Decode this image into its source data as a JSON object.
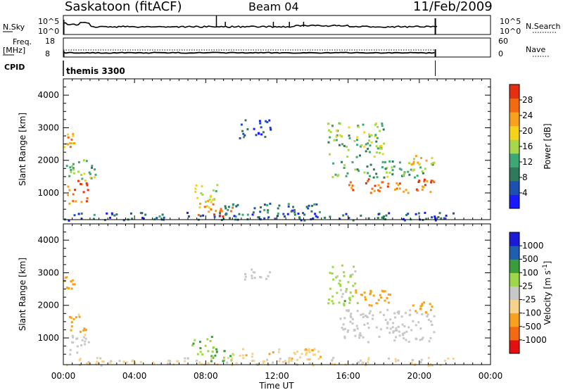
{
  "header": {
    "station": "Saskatoon (fitACF)",
    "beam": "Beam 04",
    "date": "11/Feb/2009"
  },
  "noise_panel": {
    "left_label": "N.Sky",
    "left_ticks": [
      "10^5",
      "10^0"
    ],
    "right_label": "N.Search",
    "right_ticks": [
      "10^5",
      "10^0"
    ]
  },
  "freq_panel": {
    "left_label_1": "Freq.",
    "left_label_2": "[MHz]",
    "left_ticks": [
      "18",
      "8"
    ],
    "right_label": "Nave",
    "right_ticks": [
      "60",
      "0"
    ]
  },
  "cpid": {
    "label": "CPID",
    "value": "themis 3300"
  },
  "colors": {
    "power": [
      "#1a1aff",
      "#1f4fb0",
      "#2e7a5a",
      "#3ea874",
      "#a8d84a",
      "#f6d21a",
      "#f7a21a",
      "#f46a10",
      "#e43010"
    ],
    "velocity": [
      "#e41010",
      "#f46a10",
      "#f7a21a",
      "#f6d28a",
      "#c8c8c8",
      "#9ed84a",
      "#3a9c3a",
      "#1f5fb0",
      "#1a1ad8"
    ]
  },
  "chart_data": [
    {
      "type": "heatmap",
      "name": "power",
      "ylabel": "Slant Range [km]",
      "xlabel": "Time UT",
      "x_ticks": [
        "00:00",
        "04:00",
        "08:00",
        "12:00",
        "16:00",
        "20:00",
        "00:00"
      ],
      "y_ticks": [
        "1000",
        "2000",
        "3000",
        "4000"
      ],
      "xlim_hours": [
        0,
        24
      ],
      "ylim_km": [
        180,
        4500
      ],
      "colorbar_label": "Power [dB]",
      "colorbar_ticks": [
        "4",
        "8",
        "12",
        "16",
        "20",
        "24",
        "28"
      ],
      "colorbar_range": [
        0,
        30
      ],
      "regions": [
        {
          "t": [
            0.0,
            0.6
          ],
          "r": [
            2400,
            2900
          ],
          "level": 20
        },
        {
          "t": [
            0.1,
            0.9
          ],
          "r": [
            1500,
            2000
          ],
          "level": 12
        },
        {
          "t": [
            0.2,
            1.4
          ],
          "r": [
            700,
            1400
          ],
          "level": 26
        },
        {
          "t": [
            0.9,
            1.8
          ],
          "r": [
            1400,
            2200
          ],
          "level": 14
        },
        {
          "t": [
            0.0,
            22.0
          ],
          "r": [
            180,
            420
          ],
          "level": 6
        },
        {
          "t": [
            7.2,
            8.6
          ],
          "r": [
            600,
            1300
          ],
          "level": 18
        },
        {
          "t": [
            7.5,
            9.5
          ],
          "r": [
            300,
            700
          ],
          "level": 24
        },
        {
          "t": [
            9.8,
            11.6
          ],
          "r": [
            2700,
            3300
          ],
          "level": 6
        },
        {
          "t": [
            9.0,
            14.5
          ],
          "r": [
            350,
            700
          ],
          "level": 8
        },
        {
          "t": [
            14.8,
            18.0
          ],
          "r": [
            2100,
            3200
          ],
          "level": 14
        },
        {
          "t": [
            15.0,
            20.8
          ],
          "r": [
            1500,
            2000
          ],
          "level": 12
        },
        {
          "t": [
            16.0,
            20.8
          ],
          "r": [
            1000,
            1450
          ],
          "level": 25
        },
        {
          "t": [
            19.5,
            20.8
          ],
          "r": [
            1900,
            2200
          ],
          "level": 18
        }
      ]
    },
    {
      "type": "heatmap",
      "name": "velocity",
      "ylabel": "Slant Range [km]",
      "xlabel": "Time UT",
      "x_ticks": [
        "00:00",
        "04:00",
        "08:00",
        "12:00",
        "16:00",
        "20:00",
        "00:00"
      ],
      "y_ticks": [
        "1000",
        "2000",
        "3000",
        "4000"
      ],
      "xlim_hours": [
        0,
        24
      ],
      "ylim_km": [
        180,
        4500
      ],
      "colorbar_label": "Velocity [m s^-1]",
      "colorbar_ticks": [
        "-1000",
        "-500",
        "-100",
        "-25",
        "25",
        "100",
        "500",
        "1000"
      ],
      "regions": [
        {
          "t": [
            0.0,
            0.6
          ],
          "r": [
            2400,
            2900
          ],
          "value": -300
        },
        {
          "t": [
            0.2,
            1.3
          ],
          "r": [
            1100,
            1800
          ],
          "value": -150
        },
        {
          "t": [
            0.1,
            1.4
          ],
          "r": [
            500,
            1100
          ],
          "value": 0
        },
        {
          "t": [
            7.2,
            8.6
          ],
          "r": [
            500,
            1100
          ],
          "value": 80
        },
        {
          "t": [
            8.0,
            9.5
          ],
          "r": [
            250,
            700
          ],
          "value": 90
        },
        {
          "t": [
            9.5,
            14.5
          ],
          "r": [
            350,
            700
          ],
          "value": -90
        },
        {
          "t": [
            10.0,
            11.6
          ],
          "r": [
            2800,
            3200
          ],
          "value": 0
        },
        {
          "t": [
            14.8,
            16.5
          ],
          "r": [
            2000,
            3300
          ],
          "value": 60
        },
        {
          "t": [
            16.0,
            18.5
          ],
          "r": [
            2000,
            2500
          ],
          "value": -200
        },
        {
          "t": [
            15.5,
            20.8
          ],
          "r": [
            900,
            1900
          ],
          "value": 0
        },
        {
          "t": [
            19.5,
            20.8
          ],
          "r": [
            1800,
            2200
          ],
          "value": -300
        },
        {
          "t": [
            0.0,
            22.0
          ],
          "r": [
            180,
            420
          ],
          "value": -40
        }
      ]
    }
  ]
}
